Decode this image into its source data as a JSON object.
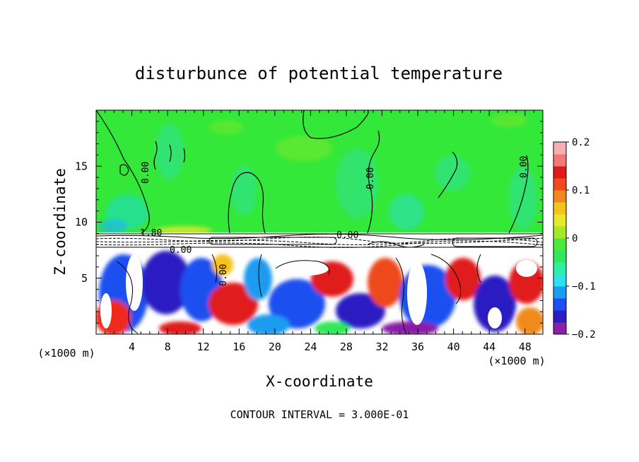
{
  "chart_data": {
    "type": "heatmap",
    "title": "disturbunce of potential temperature",
    "xlabel": "X-coordinate",
    "ylabel": "Z-coordinate",
    "x_unit": "(×1000 m)",
    "y_unit": "(×1000 m)",
    "footer": "CONTOUR INTERVAL = 3.000E-01",
    "xlim": [
      0,
      50
    ],
    "ylim": [
      0,
      20
    ],
    "x_ticks": [
      "4",
      "8",
      "12",
      "16",
      "20",
      "24",
      "28",
      "32",
      "36",
      "40",
      "44",
      "48"
    ],
    "y_ticks": [
      "5",
      "10",
      "15"
    ],
    "colorbar": {
      "range": [
        -0.2,
        0.2
      ],
      "tick_labels": [
        "0.2",
        "0.1",
        "0",
        "−0.1",
        "−0.2"
      ],
      "tick_values": [
        0.2,
        0.1,
        0,
        -0.1,
        -0.2
      ],
      "colors": [
        "#8b1fa8",
        "#2b1ec2",
        "#1f4ff0",
        "#1e9cf0",
        "#2fe0f0",
        "#2ff0a0",
        "#32e85a",
        "#4de83a",
        "#a6e62b",
        "#e6e82a",
        "#f5c21f",
        "#f08a1f",
        "#ee4a1c",
        "#e01a1a",
        "#f07a7a",
        "#f7b0b0"
      ]
    },
    "contour_labels": [
      "0.00",
      "0.00",
      "0.00",
      "0.00",
      "0.00",
      "1.80",
      "0.00"
    ],
    "contour_interval": 0.3
  }
}
